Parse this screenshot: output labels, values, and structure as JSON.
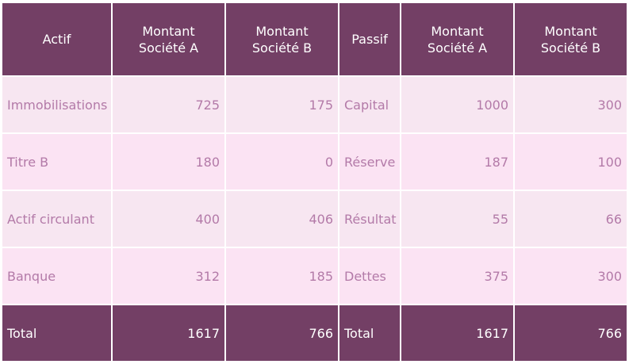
{
  "table": {
    "headers": [
      "Actif",
      "Montant Société A",
      "Montant Société B",
      "Passif",
      "Montant Société A",
      "Montant Société B"
    ],
    "rows": [
      [
        "Immobilisations",
        "725",
        "175",
        "Capital",
        "1000",
        "300"
      ],
      [
        "Titre B",
        "180",
        "0",
        "Réserve",
        "187",
        "100"
      ],
      [
        "Actif circulant",
        "400",
        "406",
        "Résultat",
        "55",
        "66"
      ],
      [
        "Banque",
        "312",
        "185",
        "Dettes",
        "375",
        "300"
      ]
    ],
    "total": [
      "Total",
      "1617",
      "766",
      "Total",
      "1617",
      "766"
    ]
  },
  "colors": {
    "header_bg": "#733f65",
    "row_bg_odd": "#f7e6f1",
    "row_bg_even": "#fbe3f3",
    "body_text": "#b37aa8",
    "header_text": "#ffffff"
  }
}
